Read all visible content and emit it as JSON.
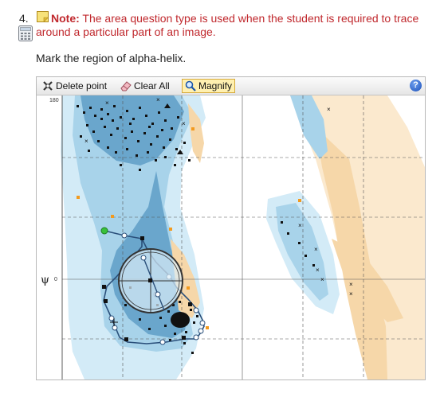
{
  "question": {
    "number": "4.",
    "note_label": "Note:",
    "note_text": "The area question type is used when the student is required to trace around a particular part of an image.",
    "prompt": "Mark the region of alpha-helix."
  },
  "toolbar": {
    "delete_point": "Delete point",
    "clear_all": "Clear All",
    "magnify": "Magnify",
    "help": "?"
  },
  "plot": {
    "y_axis_symbol": "ψ",
    "tick_top": "180",
    "tick_zero": "0"
  },
  "colors": {
    "note_red": "#c0282d",
    "region_dark": "#6aa6cc",
    "region_light": "#a8d3ea",
    "region_orange": "#f6d7a9",
    "trace_line": "#2a4f7a",
    "start_point": "#38c03a"
  },
  "icons": [
    "note-icon",
    "calculator-icon",
    "delete-point-icon",
    "eraser-icon",
    "magnify-icon",
    "help-icon"
  ]
}
